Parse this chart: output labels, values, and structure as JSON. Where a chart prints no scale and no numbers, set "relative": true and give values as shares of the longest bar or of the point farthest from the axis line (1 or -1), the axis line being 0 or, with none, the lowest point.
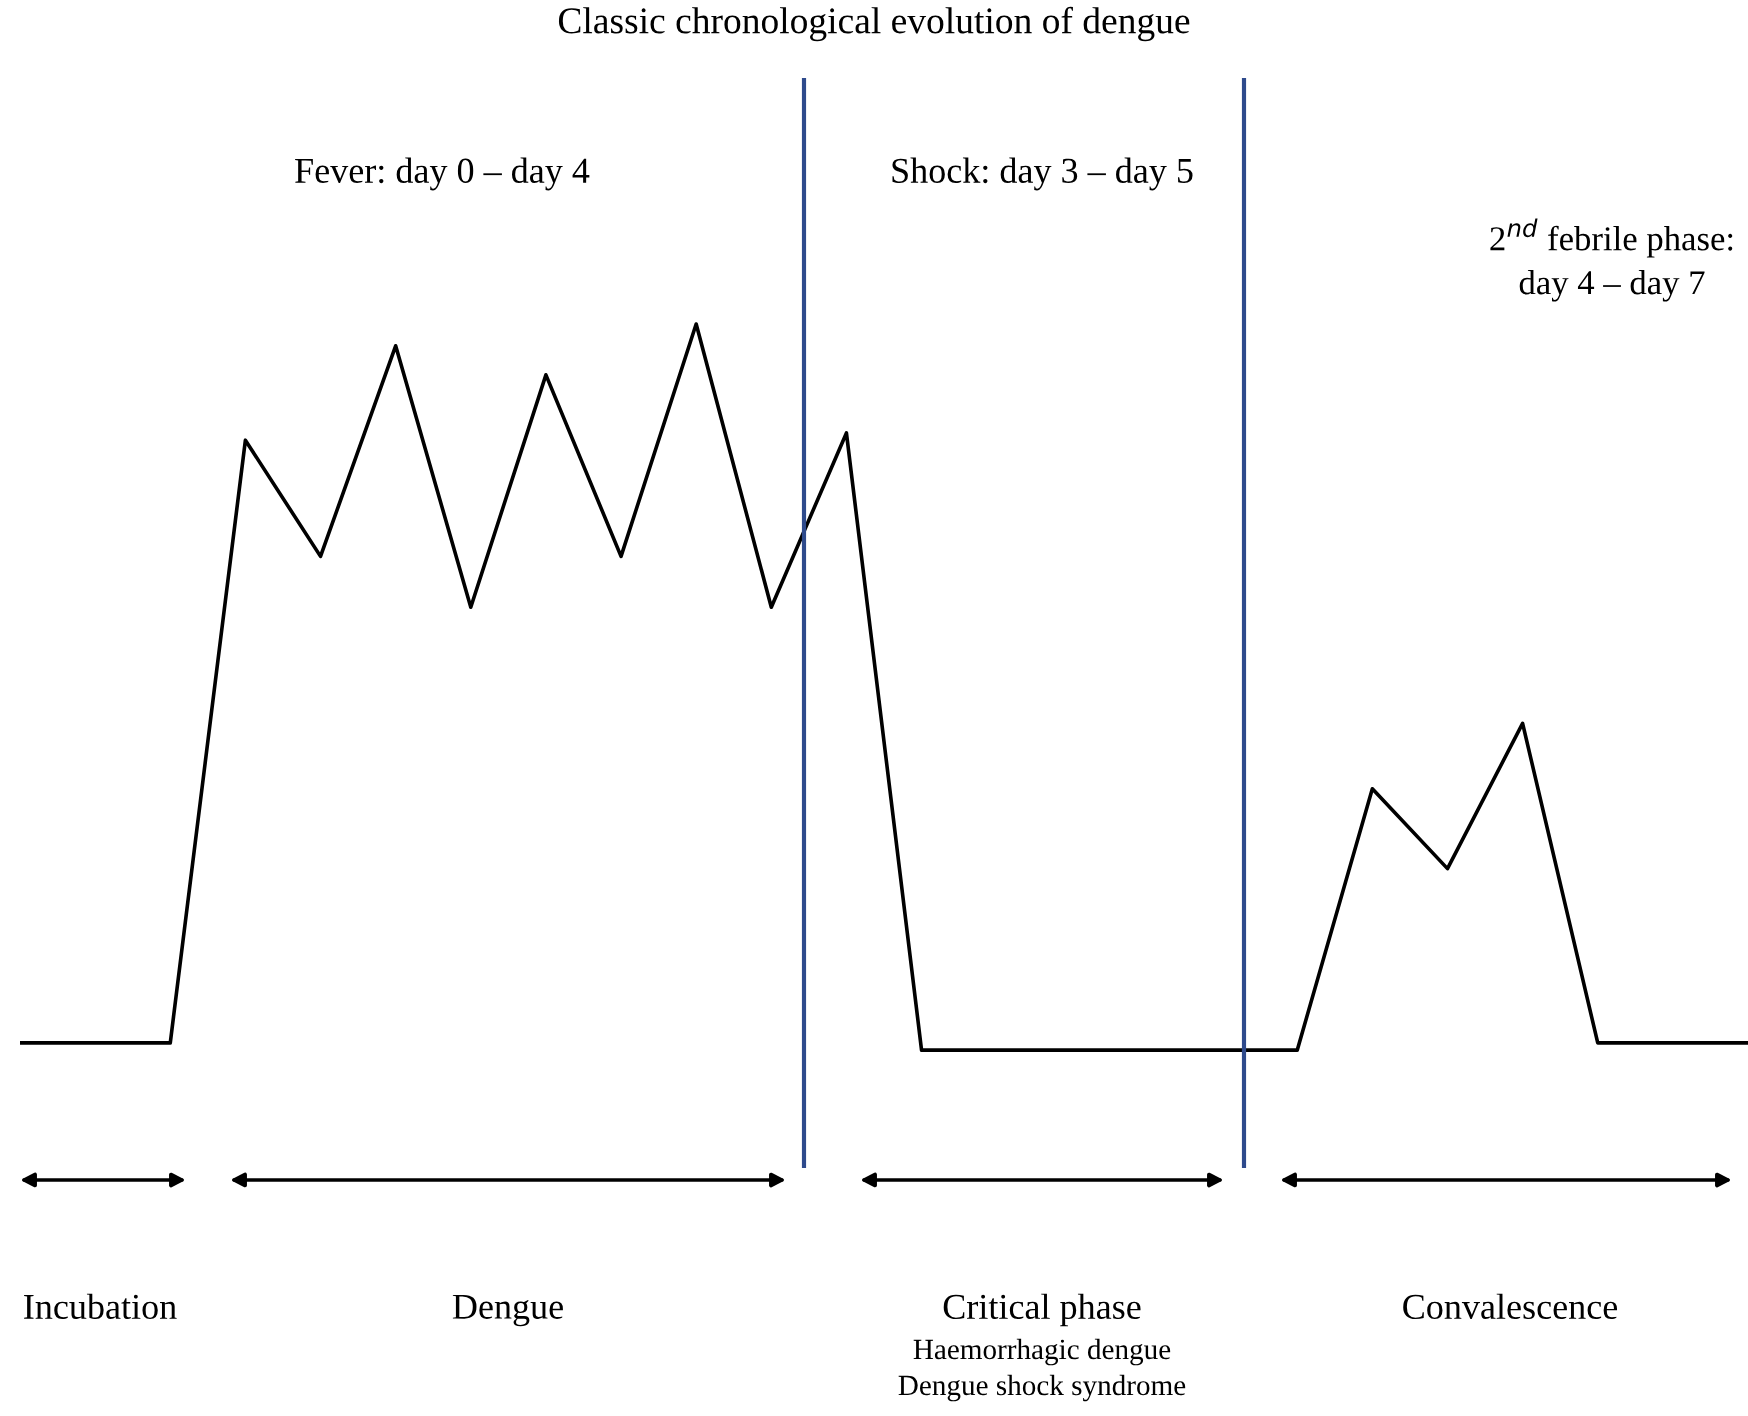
{
  "chart_data": {
    "type": "line",
    "title": "Classic chronological evolution of dengue",
    "relative": true,
    "marker": "none",
    "line_style": "solid",
    "categories": [
      null,
      null,
      null,
      null,
      null,
      null,
      null,
      null,
      null,
      null,
      null,
      null,
      null,
      null,
      null,
      null,
      null,
      null,
      null,
      null,
      null,
      null,
      null,
      null
    ],
    "series": [
      {
        "color": "#000000",
        "values": [
          0.01,
          0.01,
          0.01,
          0.84,
          0.68,
          0.97,
          0.61,
          0.93,
          0.68,
          1,
          0.61,
          0.85,
          0,
          0,
          0,
          0,
          0,
          0,
          0.36,
          0.25,
          0.45,
          0.01,
          0.01,
          0.01
        ]
      }
    ],
    "annotations": [
      "Fever: day 0 – day 4",
      "Shock: day 3 – day 5",
      "2$^{nd}$ febrile phase:\nday 4 – day 7",
      "Incubation",
      "Dengue",
      "Critical phase",
      "Haemorrhagic dengue",
      "Dengue shock syndrome",
      "Convalescence"
    ]
  }
}
